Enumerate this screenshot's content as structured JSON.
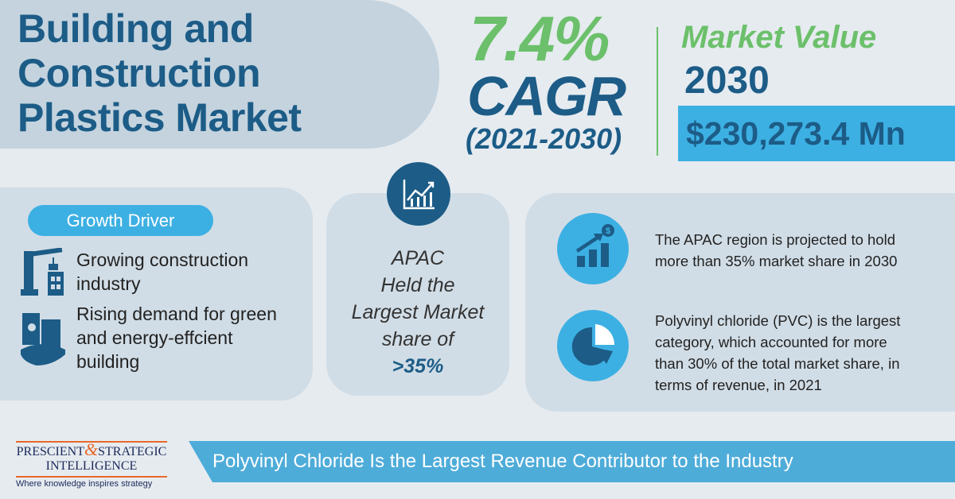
{
  "title": {
    "line1": "Building and",
    "line2": "Construction",
    "line3": "Plastics Market"
  },
  "cagr": {
    "value": "7.4%",
    "label": "CAGR",
    "period": "(2021-2030)"
  },
  "market_value": {
    "label": "Market Value",
    "year": "2030",
    "amount": "$230,273.4 Mn"
  },
  "growth_driver": {
    "label": "Growth Driver",
    "items": [
      {
        "line1": "Growing construction",
        "line2": "industry"
      },
      {
        "line1": "Rising demand for green",
        "line2": "and energy-effcient",
        "line3": "building"
      }
    ]
  },
  "apac": {
    "line1": "APAC",
    "line2": "Held the",
    "line3": "Largest Market",
    "line4": "share of",
    "pct": ">35%"
  },
  "facts": [
    {
      "line1": "The APAC region is projected to hold",
      "line2": "more than 35% market share in 2030"
    },
    {
      "line1": "Polyvinyl chloride (PVC) is the largest",
      "line2": "category, which accounted for more",
      "line3": "than 30% of the total market share, in",
      "line4": "terms of revenue, in 2021"
    }
  ],
  "banner": "Polyvinyl Chloride Is the Largest Revenue Contributor to the Industry",
  "logo": {
    "name1": "PRESCIENT",
    "amp": "&",
    "name2": "STRATEGIC",
    "name3": "INTELLIGENCE",
    "tagline": "Where knowledge inspires strategy"
  },
  "colors": {
    "dark_blue": "#1c5c87",
    "green": "#6cc06b",
    "light_blue": "#3db0e3"
  }
}
